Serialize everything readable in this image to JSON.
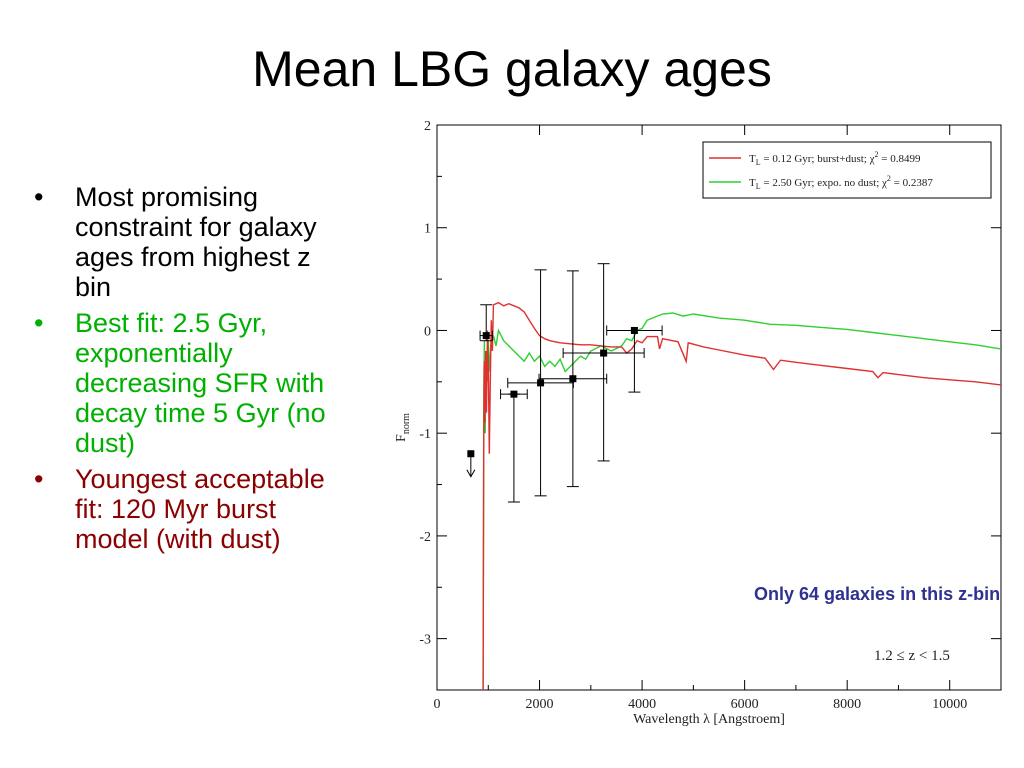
{
  "slide": {
    "title": "Mean LBG galaxy ages",
    "bullets": [
      {
        "text": "Most promising constraint for galaxy ages from highest z bin",
        "color": "#000000"
      },
      {
        "text": "Best fit: 2.5 Gyr, exponentially decreasing SFR with decay time 5 Gyr (no dust)",
        "color": "#00b000"
      },
      {
        "text": "Youngest acceptable fit: 120 Myr burst model (with dust)",
        "color": "#8b0000"
      }
    ],
    "bullet_char": "•",
    "note": "Only 64 galaxies in this z-bin",
    "z_bin_label": "1.2 ≤ z < 1.5"
  },
  "chart_data": {
    "type": "line",
    "xlabel": "Wavelength λ [Angstroem]",
    "ylabel": "F_norm",
    "xlim": [
      0,
      11000
    ],
    "ylim": [
      -3.5,
      2.0
    ],
    "x_ticks": [
      0,
      2000,
      4000,
      6000,
      8000,
      10000
    ],
    "y_ticks": [
      2,
      1,
      0,
      -1,
      -2,
      -3
    ],
    "legend_position": "top-right",
    "series": [
      {
        "name": "T_L = 0.12 Gyr; burst+dust; χ² = 0.8499",
        "legend": {
          "prefix": "T",
          "sub": "L",
          "mid": " = 0.12 Gyr; burst+dust; χ",
          "sup": "2",
          "suffix": " = 0.8499"
        },
        "color": "#e03030",
        "points": [
          [
            900,
            -3.5
          ],
          [
            910,
            -1.2
          ],
          [
            920,
            -0.3
          ],
          [
            935,
            -0.9
          ],
          [
            950,
            -0.2
          ],
          [
            965,
            -0.8
          ],
          [
            985,
            0.0
          ],
          [
            1000,
            -0.3
          ],
          [
            1020,
            -1.2
          ],
          [
            1040,
            -0.5
          ],
          [
            1060,
            0.1
          ],
          [
            1080,
            -0.2
          ],
          [
            1100,
            0.25
          ],
          [
            1200,
            0.27
          ],
          [
            1300,
            0.24
          ],
          [
            1400,
            0.26
          ],
          [
            1500,
            0.24
          ],
          [
            1600,
            0.22
          ],
          [
            1700,
            0.18
          ],
          [
            1800,
            0.1
          ],
          [
            1900,
            0.02
          ],
          [
            2000,
            -0.05
          ],
          [
            2100,
            -0.08
          ],
          [
            2200,
            -0.1
          ],
          [
            2400,
            -0.12
          ],
          [
            2600,
            -0.13
          ],
          [
            2800,
            -0.14
          ],
          [
            3000,
            -0.14
          ],
          [
            3200,
            -0.15
          ],
          [
            3400,
            -0.16
          ],
          [
            3600,
            -0.16
          ],
          [
            3700,
            -0.22
          ],
          [
            3800,
            -0.18
          ],
          [
            3900,
            -0.1
          ],
          [
            4000,
            -0.12
          ],
          [
            4100,
            -0.06
          ],
          [
            4300,
            -0.06
          ],
          [
            4340,
            -0.18
          ],
          [
            4400,
            -0.08
          ],
          [
            4700,
            -0.11
          ],
          [
            4861,
            -0.3
          ],
          [
            4900,
            -0.12
          ],
          [
            5200,
            -0.16
          ],
          [
            5500,
            -0.19
          ],
          [
            6000,
            -0.24
          ],
          [
            6400,
            -0.27
          ],
          [
            6563,
            -0.38
          ],
          [
            6700,
            -0.29
          ],
          [
            7000,
            -0.31
          ],
          [
            7500,
            -0.34
          ],
          [
            8000,
            -0.37
          ],
          [
            8500,
            -0.4
          ],
          [
            8600,
            -0.46
          ],
          [
            8700,
            -0.41
          ],
          [
            9000,
            -0.43
          ],
          [
            9500,
            -0.46
          ],
          [
            10000,
            -0.48
          ],
          [
            10500,
            -0.5
          ],
          [
            11000,
            -0.53
          ]
        ]
      },
      {
        "name": "T_L = 2.50 Gyr; expo. no dust; χ² = 0.2387",
        "legend": {
          "prefix": "T",
          "sub": "L",
          "mid": " = 2.50 Gyr; expo. no dust; χ",
          "sup": "2",
          "suffix": " = 0.2387"
        },
        "color": "#30d030",
        "points": [
          [
            900,
            -3.5
          ],
          [
            912,
            -0.6
          ],
          [
            925,
            -0.1
          ],
          [
            940,
            -1.0
          ],
          [
            960,
            -0.2
          ],
          [
            980,
            -0.5
          ],
          [
            1000,
            -0.1
          ],
          [
            1020,
            -0.4
          ],
          [
            1050,
            -0.15
          ],
          [
            1100,
            -0.05
          ],
          [
            1150,
            -0.15
          ],
          [
            1200,
            0.0
          ],
          [
            1300,
            -0.1
          ],
          [
            1400,
            -0.15
          ],
          [
            1500,
            -0.2
          ],
          [
            1600,
            -0.25
          ],
          [
            1700,
            -0.3
          ],
          [
            1800,
            -0.22
          ],
          [
            1900,
            -0.3
          ],
          [
            2000,
            -0.25
          ],
          [
            2100,
            -0.35
          ],
          [
            2200,
            -0.3
          ],
          [
            2300,
            -0.35
          ],
          [
            2400,
            -0.28
          ],
          [
            2500,
            -0.4
          ],
          [
            2600,
            -0.35
          ],
          [
            2700,
            -0.3
          ],
          [
            2800,
            -0.25
          ],
          [
            2900,
            -0.28
          ],
          [
            3000,
            -0.2
          ],
          [
            3200,
            -0.15
          ],
          [
            3400,
            -0.2
          ],
          [
            3600,
            -0.15
          ],
          [
            3700,
            -0.08
          ],
          [
            3800,
            -0.1
          ],
          [
            3900,
            0.0
          ],
          [
            4000,
            0.02
          ],
          [
            4100,
            0.1
          ],
          [
            4200,
            0.12
          ],
          [
            4400,
            0.16
          ],
          [
            4600,
            0.17
          ],
          [
            4800,
            0.14
          ],
          [
            5000,
            0.16
          ],
          [
            5500,
            0.12
          ],
          [
            6000,
            0.1
          ],
          [
            6500,
            0.06
          ],
          [
            7000,
            0.05
          ],
          [
            7500,
            0.03
          ],
          [
            8000,
            0.01
          ],
          [
            8500,
            -0.02
          ],
          [
            9000,
            -0.05
          ],
          [
            9500,
            -0.08
          ],
          [
            10000,
            -0.11
          ],
          [
            10500,
            -0.14
          ],
          [
            11000,
            -0.18
          ]
        ]
      }
    ],
    "data_points": [
      {
        "x": 960,
        "y": -0.05,
        "xerr": 120,
        "yerr_low": 0.05,
        "yerr_high": 0.3
      },
      {
        "x": 1500,
        "y": -0.62,
        "xerr": 260,
        "yerr_low": 1.05,
        "yerr_high": 0.0
      },
      {
        "x": 2020,
        "y": -0.51,
        "xerr": 640,
        "yerr_low": 1.1,
        "yerr_high": 1.1
      },
      {
        "x": 2650,
        "y": -0.47,
        "xerr": 660,
        "yerr_low": 1.05,
        "yerr_high": 1.05
      },
      {
        "x": 3250,
        "y": -0.22,
        "xerr": 790,
        "yerr_low": 1.05,
        "yerr_high": 0.87
      },
      {
        "x": 3850,
        "y": 0.0,
        "xerr": 540,
        "yerr_low": 0.6,
        "yerr_high": 0.0
      }
    ],
    "upper_limit": {
      "x": 660,
      "y": -1.2
    }
  }
}
